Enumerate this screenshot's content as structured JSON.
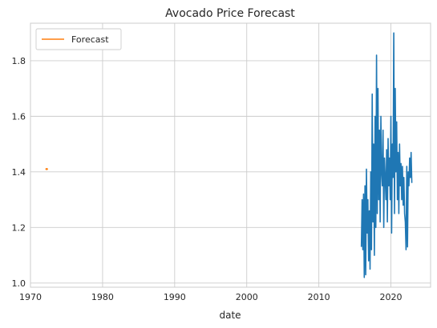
{
  "chart_data": {
    "type": "line",
    "title": "Avocado Price Forecast",
    "xlabel": "date",
    "ylabel": "",
    "xlim": [
      1970,
      2025.5
    ],
    "ylim": [
      0.985,
      1.935
    ],
    "x_ticks": [
      1970,
      1980,
      1990,
      2000,
      2010,
      2020
    ],
    "x_tick_labels": [
      "1970",
      "1980",
      "1990",
      "2000",
      "2010",
      "2020"
    ],
    "y_ticks": [
      1.0,
      1.2,
      1.4,
      1.6,
      1.8
    ],
    "y_tick_labels": [
      "1.0",
      "1.2",
      "1.4",
      "1.6",
      "1.8"
    ],
    "grid": true,
    "legend": {
      "location": "upper-left",
      "entries": [
        "Forecast"
      ]
    },
    "series": [
      {
        "legend": false,
        "color": "#1f77b4",
        "x": [
          2015.9,
          2016.0,
          2016.1,
          2016.2,
          2016.3,
          2016.4,
          2016.5,
          2016.6,
          2016.7,
          2016.8,
          2016.9,
          2017.0,
          2017.1,
          2017.2,
          2017.3,
          2017.4,
          2017.5,
          2017.6,
          2017.7,
          2017.8,
          2017.9,
          2018.0,
          2018.1,
          2018.2,
          2018.3,
          2018.4,
          2018.5,
          2018.6,
          2018.7,
          2018.8,
          2018.9,
          2019.0,
          2019.1,
          2019.2,
          2019.3,
          2019.4,
          2019.5,
          2019.6,
          2019.7,
          2019.8,
          2019.9,
          2020.0,
          2020.1,
          2020.2,
          2020.3,
          2020.4,
          2020.5,
          2020.6,
          2020.7,
          2020.8,
          2020.9,
          2021.0,
          2021.1,
          2021.2,
          2021.3,
          2021.4,
          2021.5,
          2021.6,
          2021.7,
          2021.8,
          2021.9,
          2022.0,
          2022.1,
          2022.2,
          2022.3,
          2022.4,
          2022.5,
          2022.6,
          2022.7,
          2022.8,
          2022.9
        ],
        "y": [
          1.13,
          1.3,
          1.12,
          1.32,
          1.02,
          1.35,
          1.03,
          1.41,
          1.18,
          1.3,
          1.08,
          1.26,
          1.05,
          1.4,
          1.12,
          1.68,
          1.22,
          1.5,
          1.1,
          1.6,
          1.2,
          1.82,
          1.25,
          1.7,
          1.3,
          1.55,
          1.22,
          1.6,
          1.4,
          1.35,
          1.55,
          1.2,
          1.45,
          1.38,
          1.3,
          1.48,
          1.22,
          1.52,
          1.35,
          1.45,
          1.3,
          1.6,
          1.18,
          1.5,
          1.38,
          1.9,
          1.25,
          1.7,
          1.4,
          1.58,
          1.3,
          1.47,
          1.25,
          1.5,
          1.35,
          1.43,
          1.3,
          1.42,
          1.28,
          1.38,
          1.25,
          1.22,
          1.12,
          1.42,
          1.13,
          1.4,
          1.35,
          1.45,
          1.38,
          1.47,
          1.36
        ]
      },
      {
        "name": "Forecast",
        "color": "#ff7f0e",
        "x": [
          1972.2,
          1972.3
        ],
        "y": [
          1.41,
          1.41
        ]
      }
    ]
  }
}
